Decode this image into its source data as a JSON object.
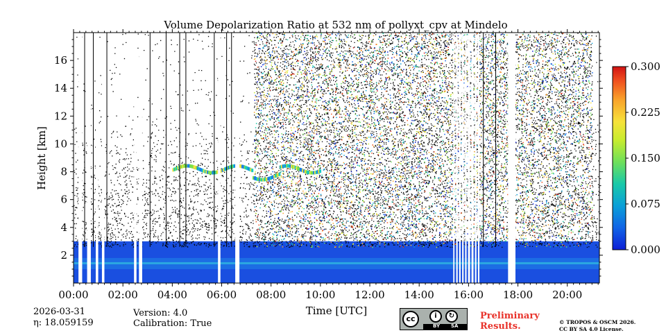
{
  "chart_data": {
    "type": "heatmap",
    "title": "Volume Depolarization Ratio at 532 nm of pollyxt_cpv at Mindelo",
    "xlabel": "Time [UTC]",
    "ylabel": "Height [km]",
    "xlim_hours": [
      0,
      21.3
    ],
    "ylim_km": [
      0,
      18
    ],
    "x_ticks": [
      "00:00",
      "02:00",
      "04:00",
      "06:00",
      "08:00",
      "10:00",
      "12:00",
      "14:00",
      "16:00",
      "18:00",
      "20:00"
    ],
    "x_tick_hours": [
      0,
      2,
      4,
      6,
      8,
      10,
      12,
      14,
      16,
      18,
      20
    ],
    "y_ticks": [
      "2",
      "4",
      "6",
      "8",
      "10",
      "12",
      "14",
      "16"
    ],
    "y_tick_values": [
      2,
      4,
      6,
      8,
      10,
      12,
      14,
      16
    ],
    "colorbar": {
      "range": [
        0.0,
        0.3
      ],
      "ticks": [
        "0.000",
        "0.075",
        "0.150",
        "0.225",
        "0.300"
      ],
      "tick_values": [
        0.0,
        0.075,
        0.15,
        0.225,
        0.3
      ],
      "colormap": [
        "#0d1fd6",
        "#1164e6",
        "#0aa0d8",
        "#19c9a8",
        "#6fe05a",
        "#c8ec2e",
        "#f7e23a",
        "#f9a22a",
        "#f0521f",
        "#d11313"
      ]
    },
    "features": {
      "boundary_layer_top_km": 3.0,
      "aerosol_band_km": [
        1.0,
        1.8
      ],
      "cloud_layer_km": 8.3,
      "cloud_layer_hours": [
        4.0,
        10.0
      ],
      "noise_region_hours": [
        7.3,
        21.0
      ],
      "no_data_gaps_hours": [
        [
          0.2,
          0.35
        ],
        [
          0.55,
          0.7
        ],
        [
          0.9,
          1.0
        ],
        [
          1.15,
          1.25
        ],
        [
          2.45,
          2.55
        ],
        [
          2.65,
          2.78
        ],
        [
          5.85,
          5.95
        ],
        [
          6.55,
          6.72
        ],
        [
          15.38,
          15.43
        ],
        [
          15.5,
          15.56
        ],
        [
          15.62,
          15.68
        ],
        [
          15.74,
          15.8
        ],
        [
          15.86,
          15.92
        ],
        [
          15.98,
          16.06
        ],
        [
          16.12,
          16.2
        ],
        [
          16.26,
          16.32
        ],
        [
          16.38,
          16.44
        ],
        [
          17.6,
          17.9
        ]
      ]
    }
  },
  "footer": {
    "date": "2026-03-31",
    "eta": "η: 18.059159",
    "version": "Version: 4.0",
    "calibration": "Calibration: True",
    "license_logo": {
      "cc": "cc",
      "by": "BY",
      "sa": "SA"
    },
    "preliminary_line1": "Preliminary",
    "preliminary_line2": "Results.",
    "copyright_line1": "© TROPOS & OSCM 2026.",
    "copyright_line2": "CC BY SA 4.0 License."
  }
}
